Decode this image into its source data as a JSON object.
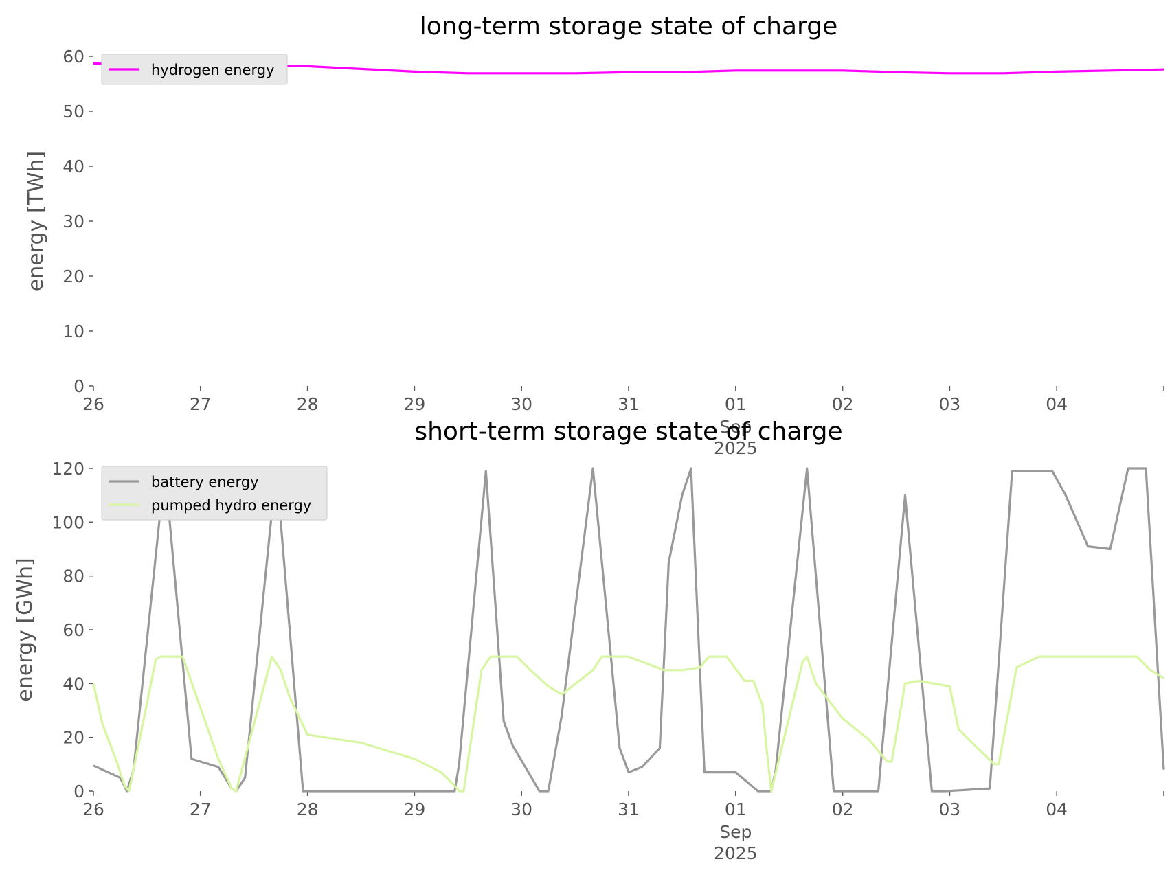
{
  "chart_data": [
    {
      "type": "line",
      "title": "long-term storage state of charge",
      "xlabel": "",
      "ylabel": "energy [TWh]",
      "ylim": [
        0,
        60
      ],
      "yticks": [
        0,
        10,
        20,
        30,
        40,
        50,
        60
      ],
      "xlim": [
        "2025-08-26",
        "2025-09-05"
      ],
      "xticks": [
        {
          "date": "2025-08-26",
          "label": "26"
        },
        {
          "date": "2025-08-27",
          "label": "27"
        },
        {
          "date": "2025-08-28",
          "label": "28"
        },
        {
          "date": "2025-08-29",
          "label": "29"
        },
        {
          "date": "2025-08-30",
          "label": "30"
        },
        {
          "date": "2025-08-31",
          "label": "31"
        },
        {
          "date": "2025-09-01",
          "label": "01"
        },
        {
          "date": "2025-09-02",
          "label": "02"
        },
        {
          "date": "2025-09-03",
          "label": "03"
        },
        {
          "date": "2025-09-04",
          "label": "04"
        }
      ],
      "month_label": "Sep",
      "year_label": "2025",
      "grid": false,
      "legend_position": "top-left",
      "series": [
        {
          "name": "hydrogen energy",
          "color": "#ff00ff",
          "x": [
            "2025-08-26T00:00",
            "2025-08-26T12:00",
            "2025-08-27T00:00",
            "2025-08-27T12:00",
            "2025-08-28T00:00",
            "2025-08-28T12:00",
            "2025-08-29T00:00",
            "2025-08-29T12:00",
            "2025-08-30T00:00",
            "2025-08-30T12:00",
            "2025-08-31T00:00",
            "2025-08-31T12:00",
            "2025-09-01T00:00",
            "2025-09-01T12:00",
            "2025-09-02T00:00",
            "2025-09-02T12:00",
            "2025-09-03T00:00",
            "2025-09-03T12:00",
            "2025-09-04T00:00",
            "2025-09-04T12:00",
            "2025-09-05T00:00"
          ],
          "values": [
            58.7,
            58.3,
            58.4,
            58.4,
            58.2,
            57.7,
            57.2,
            56.9,
            56.9,
            56.9,
            57.1,
            57.1,
            57.4,
            57.4,
            57.4,
            57.1,
            56.9,
            56.9,
            57.2,
            57.4,
            57.6
          ]
        }
      ]
    },
    {
      "type": "line",
      "title": "short-term storage state of charge",
      "xlabel": "",
      "ylabel": "energy [GWh]",
      "ylim": [
        0,
        120
      ],
      "yticks": [
        0,
        20,
        40,
        60,
        80,
        100,
        120
      ],
      "xlim": [
        "2025-08-26",
        "2025-09-05"
      ],
      "xticks": [
        {
          "date": "2025-08-26",
          "label": "26"
        },
        {
          "date": "2025-08-27",
          "label": "27"
        },
        {
          "date": "2025-08-28",
          "label": "28"
        },
        {
          "date": "2025-08-29",
          "label": "29"
        },
        {
          "date": "2025-08-30",
          "label": "30"
        },
        {
          "date": "2025-08-31",
          "label": "31"
        },
        {
          "date": "2025-09-01",
          "label": "01"
        },
        {
          "date": "2025-09-02",
          "label": "02"
        },
        {
          "date": "2025-09-03",
          "label": "03"
        },
        {
          "date": "2025-09-04",
          "label": "04"
        }
      ],
      "month_label": "Sep",
      "year_label": "2025",
      "grid": false,
      "legend_position": "top-left",
      "series": [
        {
          "name": "battery energy",
          "color": "#999999",
          "x": [
            "2025-08-26T00:00",
            "2025-08-26T06:00",
            "2025-08-26T07:30",
            "2025-08-26T09:00",
            "2025-08-26T16:00",
            "2025-08-26T22:00",
            "2025-08-27T04:00",
            "2025-08-27T07:00",
            "2025-08-27T08:00",
            "2025-08-27T10:00",
            "2025-08-27T17:00",
            "2025-08-27T23:00",
            "2025-08-28T00:00",
            "2025-08-29T09:00",
            "2025-08-29T10:00",
            "2025-08-29T16:00",
            "2025-08-29T20:00",
            "2025-08-29T22:00",
            "2025-08-30T04:00",
            "2025-08-30T06:00",
            "2025-08-30T09:00",
            "2025-08-30T16:00",
            "2025-08-30T22:00",
            "2025-08-31T00:00",
            "2025-08-31T03:00",
            "2025-08-31T07:00",
            "2025-08-31T09:00",
            "2025-08-31T12:00",
            "2025-08-31T14:00",
            "2025-08-31T17:00",
            "2025-08-31T23:00",
            "2025-09-01T00:00",
            "2025-09-01T05:00",
            "2025-09-01T08:00",
            "2025-09-01T09:00",
            "2025-09-01T16:00",
            "2025-09-01T22:00",
            "2025-09-02T01:00",
            "2025-09-02T08:00",
            "2025-09-02T14:00",
            "2025-09-02T20:00",
            "2025-09-02T23:00",
            "2025-09-03T09:00",
            "2025-09-03T14:00",
            "2025-09-03T23:00",
            "2025-09-04T02:00",
            "2025-09-04T07:00",
            "2025-09-04T12:00",
            "2025-09-04T16:00",
            "2025-09-04T20:00",
            "2025-09-05T00:00"
          ],
          "values": [
            9.5,
            5,
            0,
            8,
            120,
            12,
            9,
            1,
            0,
            5,
            120,
            0,
            0,
            0,
            10,
            119,
            26,
            17,
            0,
            0,
            28,
            120,
            16,
            7,
            9,
            16,
            85,
            110,
            120,
            7,
            7,
            7,
            0,
            0,
            8,
            120,
            0,
            0,
            0,
            110,
            0,
            0,
            1,
            119,
            119,
            110,
            91,
            90,
            120,
            120,
            8
          ]
        },
        {
          "name": "pumped hydro energy",
          "color": "#d8f5a2",
          "x": [
            "2025-08-26T00:00",
            "2025-08-26T02:00",
            "2025-08-26T05:00",
            "2025-08-26T07:00",
            "2025-08-26T08:00",
            "2025-08-26T14:00",
            "2025-08-26T15:00",
            "2025-08-26T20:00",
            "2025-08-27T04:00",
            "2025-08-27T07:00",
            "2025-08-27T08:00",
            "2025-08-27T16:00",
            "2025-08-27T18:00",
            "2025-08-27T20:00",
            "2025-08-27T22:00",
            "2025-08-28T00:00",
            "2025-08-28T12:00",
            "2025-08-29T00:00",
            "2025-08-29T06:00",
            "2025-08-29T09:00",
            "2025-08-29T10:00",
            "2025-08-29T11:00",
            "2025-08-29T15:00",
            "2025-08-29T17:00",
            "2025-08-29T23:00",
            "2025-08-30T02:00",
            "2025-08-30T06:00",
            "2025-08-30T09:00",
            "2025-08-30T16:00",
            "2025-08-30T18:00",
            "2025-08-30T23:00",
            "2025-08-31T00:00",
            "2025-08-31T08:00",
            "2025-08-31T12:00",
            "2025-08-31T16:00",
            "2025-08-31T18:00",
            "2025-08-31T22:00",
            "2025-09-01T02:00",
            "2025-09-01T04:00",
            "2025-09-01T06:00",
            "2025-09-01T07:00",
            "2025-09-01T08:00",
            "2025-09-01T15:00",
            "2025-09-01T16:00",
            "2025-09-01T18:00",
            "2025-09-02T00:00",
            "2025-09-02T06:00",
            "2025-09-02T10:00",
            "2025-09-02T11:00",
            "2025-09-02T14:00",
            "2025-09-02T17:00",
            "2025-09-03T00:00",
            "2025-09-03T02:00",
            "2025-09-03T05:00",
            "2025-09-03T10:00",
            "2025-09-03T11:00",
            "2025-09-03T15:00",
            "2025-09-03T20:00",
            "2025-09-04T00:00",
            "2025-09-04T12:00",
            "2025-09-04T18:00",
            "2025-09-04T21:00",
            "2025-09-05T00:00"
          ],
          "values": [
            40,
            25,
            12,
            2,
            0,
            49,
            50,
            50,
            12,
            1,
            0,
            50,
            45,
            35,
            28,
            21,
            18,
            12,
            7,
            2,
            0,
            0,
            45,
            50,
            50,
            45,
            39,
            36,
            45,
            50,
            50,
            50,
            45,
            45,
            46,
            50,
            50,
            41,
            41,
            32,
            15,
            0,
            48,
            50,
            40,
            27,
            19,
            11,
            11,
            40,
            41,
            39,
            23,
            18,
            10,
            10,
            46,
            50,
            50,
            50,
            50,
            45,
            42
          ]
        }
      ]
    }
  ]
}
